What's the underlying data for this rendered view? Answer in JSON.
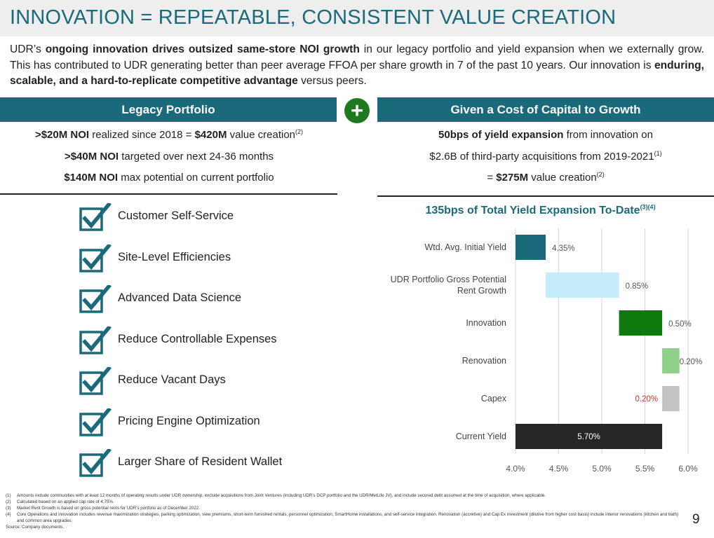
{
  "title": "INNOVATION = REPEATABLE, CONSISTENT VALUE CREATION",
  "intro": {
    "p1": "UDR’s ",
    "b1": "ongoing innovation drives outsized same-store NOI growth",
    "p2": " in our legacy portfolio and yield expansion when we externally grow. This has contributed to UDR generating better than peer average FFOA per share growth in 7 of the past 10 years. Our innovation is ",
    "b2": "enduring, scalable, and a hard-to-replicate competitive advantage",
    "p3": " versus peers."
  },
  "legacy": {
    "header": "Legacy Portfolio",
    "line1": {
      "bold": ">$20M NOI",
      "text": " realized since 2018 = ",
      "bold2": "$420M",
      "text2": " value creation",
      "sup": "(2)"
    },
    "line2": {
      "bold": ">$40M NOI",
      "text": " targeted over next 24-36 months"
    },
    "line3": {
      "bold": "$140M NOI",
      "text": " max potential on current portfolio"
    }
  },
  "plus_symbol": "+",
  "growth": {
    "header": "Given a Cost of Capital to Growth",
    "line1": {
      "bold": "50bps of yield expansion",
      "text": " from innovation on"
    },
    "line2": {
      "text": "$2.6B of third-party acquisitions from 2019-2021",
      "sup": "(1)"
    },
    "line3": {
      "text": "= ",
      "bold": "$275M",
      "text2": " value creation",
      "sup": "(2)"
    }
  },
  "checklist": [
    "Customer Self-Service",
    "Site-Level Efficiencies",
    "Advanced Data Science",
    "Reduce Controllable Expenses",
    "Reduce Vacant Days",
    "Pricing Engine Optimization",
    "Larger Share of Resident Wallet"
  ],
  "chart_title": {
    "text": "135bps of Total Yield Expansion To-Date",
    "sup": "(3)(4)"
  },
  "chart_data": {
    "type": "bar",
    "orientation": "horizontal-waterfall",
    "title": "135bps of Total Yield Expansion To-Date(3)(4)",
    "categories": [
      "Wtd. Avg. Initial Yield",
      "UDR Portfolio Gross Potential Rent Growth",
      "Innovation",
      "Renovation",
      "Capex",
      "Current Yield"
    ],
    "category_lines": [
      [
        "Wtd. Avg. Initial Yield"
      ],
      [
        "UDR Portfolio Gross Potential",
        "Rent Growth"
      ],
      [
        "Innovation"
      ],
      [
        "Renovation"
      ],
      [
        "Capex"
      ],
      [
        "Current Yield"
      ]
    ],
    "bars": [
      {
        "start": 4.0,
        "end": 4.35,
        "label": "4.35%",
        "color": "#1a6a7c",
        "label_color": "#555555"
      },
      {
        "start": 4.35,
        "end": 5.2,
        "label": "0.85%",
        "color": "#c5ecf8",
        "label_color": "#555555"
      },
      {
        "start": 5.2,
        "end": 5.7,
        "label": "0.50%",
        "color": "#0e7a0e",
        "label_color": "#555555"
      },
      {
        "start": 5.7,
        "end": 5.9,
        "label": "0.20%",
        "color": "#8fd18a",
        "label_color": "#555555"
      },
      {
        "start": 5.7,
        "end": 5.9,
        "label": "0.20%",
        "color": "#c4c4c4",
        "label_color": "#c0392b"
      },
      {
        "start": 4.0,
        "end": 5.7,
        "label": "5.70%",
        "color": "#262626",
        "label_color": "#ffffff"
      }
    ],
    "xlim": [
      4.0,
      6.0
    ],
    "xticks": [
      4.0,
      4.5,
      5.0,
      5.5,
      6.0
    ],
    "xtick_labels": [
      "4.0%",
      "4.5%",
      "5.0%",
      "5.5%",
      "6.0%"
    ],
    "grid": true
  },
  "footnotes": [
    {
      "num": "(1)",
      "text": "Amounts include communities with at least 12 months of operating results under UDR ownership, exclude acquisitions from Joint Ventures (including UDR’s DCP portfolio and the UDR/MetLife JV), and include secured debt assumed at the time of acquisition, where applicable."
    },
    {
      "num": "(2)",
      "text": "Calculated based on an applied cap rate of 4.75%."
    },
    {
      "num": "(3)",
      "text": "Market Rent Growth is based on gross potential rents for UDR’s portfolio as of December 2022."
    },
    {
      "num": "(4)",
      "text": "Core Operations and innovation includes revenue maximization strategies, parking optimization, view premiums, short-term furnished rentals, personnel optimization, SmartHome installations, and self-service integration. Renovation (accretive) and Cap Ex investment (dilutive from higher cost basis) include interior renovations (kitchen and bath) and common area upgrades."
    }
  ],
  "source": "Source:  Company documents.",
  "page_number": "9"
}
